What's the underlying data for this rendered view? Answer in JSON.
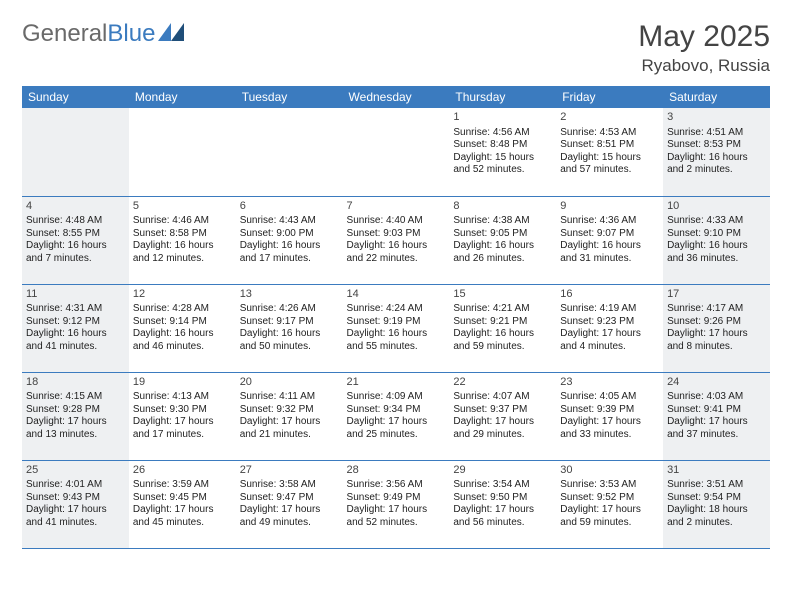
{
  "logo": {
    "text1": "General",
    "text2": "Blue"
  },
  "title": "May 2025",
  "location": "Ryabovo, Russia",
  "colors": {
    "header_bg": "#3b7bbf",
    "header_text": "#ffffff",
    "weekend_bg": "#eef0f2",
    "border": "#3b7bbf",
    "logo_gray": "#6a6a6a",
    "logo_blue": "#3b7bbf"
  },
  "weekdays": [
    "Sunday",
    "Monday",
    "Tuesday",
    "Wednesday",
    "Thursday",
    "Friday",
    "Saturday"
  ],
  "weeks": [
    [
      null,
      null,
      null,
      null,
      {
        "n": "1",
        "sr": "Sunrise: 4:56 AM",
        "ss": "Sunset: 8:48 PM",
        "d1": "Daylight: 15 hours",
        "d2": "and 52 minutes."
      },
      {
        "n": "2",
        "sr": "Sunrise: 4:53 AM",
        "ss": "Sunset: 8:51 PM",
        "d1": "Daylight: 15 hours",
        "d2": "and 57 minutes."
      },
      {
        "n": "3",
        "sr": "Sunrise: 4:51 AM",
        "ss": "Sunset: 8:53 PM",
        "d1": "Daylight: 16 hours",
        "d2": "and 2 minutes."
      }
    ],
    [
      {
        "n": "4",
        "sr": "Sunrise: 4:48 AM",
        "ss": "Sunset: 8:55 PM",
        "d1": "Daylight: 16 hours",
        "d2": "and 7 minutes."
      },
      {
        "n": "5",
        "sr": "Sunrise: 4:46 AM",
        "ss": "Sunset: 8:58 PM",
        "d1": "Daylight: 16 hours",
        "d2": "and 12 minutes."
      },
      {
        "n": "6",
        "sr": "Sunrise: 4:43 AM",
        "ss": "Sunset: 9:00 PM",
        "d1": "Daylight: 16 hours",
        "d2": "and 17 minutes."
      },
      {
        "n": "7",
        "sr": "Sunrise: 4:40 AM",
        "ss": "Sunset: 9:03 PM",
        "d1": "Daylight: 16 hours",
        "d2": "and 22 minutes."
      },
      {
        "n": "8",
        "sr": "Sunrise: 4:38 AM",
        "ss": "Sunset: 9:05 PM",
        "d1": "Daylight: 16 hours",
        "d2": "and 26 minutes."
      },
      {
        "n": "9",
        "sr": "Sunrise: 4:36 AM",
        "ss": "Sunset: 9:07 PM",
        "d1": "Daylight: 16 hours",
        "d2": "and 31 minutes."
      },
      {
        "n": "10",
        "sr": "Sunrise: 4:33 AM",
        "ss": "Sunset: 9:10 PM",
        "d1": "Daylight: 16 hours",
        "d2": "and 36 minutes."
      }
    ],
    [
      {
        "n": "11",
        "sr": "Sunrise: 4:31 AM",
        "ss": "Sunset: 9:12 PM",
        "d1": "Daylight: 16 hours",
        "d2": "and 41 minutes."
      },
      {
        "n": "12",
        "sr": "Sunrise: 4:28 AM",
        "ss": "Sunset: 9:14 PM",
        "d1": "Daylight: 16 hours",
        "d2": "and 46 minutes."
      },
      {
        "n": "13",
        "sr": "Sunrise: 4:26 AM",
        "ss": "Sunset: 9:17 PM",
        "d1": "Daylight: 16 hours",
        "d2": "and 50 minutes."
      },
      {
        "n": "14",
        "sr": "Sunrise: 4:24 AM",
        "ss": "Sunset: 9:19 PM",
        "d1": "Daylight: 16 hours",
        "d2": "and 55 minutes."
      },
      {
        "n": "15",
        "sr": "Sunrise: 4:21 AM",
        "ss": "Sunset: 9:21 PM",
        "d1": "Daylight: 16 hours",
        "d2": "and 59 minutes."
      },
      {
        "n": "16",
        "sr": "Sunrise: 4:19 AM",
        "ss": "Sunset: 9:23 PM",
        "d1": "Daylight: 17 hours",
        "d2": "and 4 minutes."
      },
      {
        "n": "17",
        "sr": "Sunrise: 4:17 AM",
        "ss": "Sunset: 9:26 PM",
        "d1": "Daylight: 17 hours",
        "d2": "and 8 minutes."
      }
    ],
    [
      {
        "n": "18",
        "sr": "Sunrise: 4:15 AM",
        "ss": "Sunset: 9:28 PM",
        "d1": "Daylight: 17 hours",
        "d2": "and 13 minutes."
      },
      {
        "n": "19",
        "sr": "Sunrise: 4:13 AM",
        "ss": "Sunset: 9:30 PM",
        "d1": "Daylight: 17 hours",
        "d2": "and 17 minutes."
      },
      {
        "n": "20",
        "sr": "Sunrise: 4:11 AM",
        "ss": "Sunset: 9:32 PM",
        "d1": "Daylight: 17 hours",
        "d2": "and 21 minutes."
      },
      {
        "n": "21",
        "sr": "Sunrise: 4:09 AM",
        "ss": "Sunset: 9:34 PM",
        "d1": "Daylight: 17 hours",
        "d2": "and 25 minutes."
      },
      {
        "n": "22",
        "sr": "Sunrise: 4:07 AM",
        "ss": "Sunset: 9:37 PM",
        "d1": "Daylight: 17 hours",
        "d2": "and 29 minutes."
      },
      {
        "n": "23",
        "sr": "Sunrise: 4:05 AM",
        "ss": "Sunset: 9:39 PM",
        "d1": "Daylight: 17 hours",
        "d2": "and 33 minutes."
      },
      {
        "n": "24",
        "sr": "Sunrise: 4:03 AM",
        "ss": "Sunset: 9:41 PM",
        "d1": "Daylight: 17 hours",
        "d2": "and 37 minutes."
      }
    ],
    [
      {
        "n": "25",
        "sr": "Sunrise: 4:01 AM",
        "ss": "Sunset: 9:43 PM",
        "d1": "Daylight: 17 hours",
        "d2": "and 41 minutes."
      },
      {
        "n": "26",
        "sr": "Sunrise: 3:59 AM",
        "ss": "Sunset: 9:45 PM",
        "d1": "Daylight: 17 hours",
        "d2": "and 45 minutes."
      },
      {
        "n": "27",
        "sr": "Sunrise: 3:58 AM",
        "ss": "Sunset: 9:47 PM",
        "d1": "Daylight: 17 hours",
        "d2": "and 49 minutes."
      },
      {
        "n": "28",
        "sr": "Sunrise: 3:56 AM",
        "ss": "Sunset: 9:49 PM",
        "d1": "Daylight: 17 hours",
        "d2": "and 52 minutes."
      },
      {
        "n": "29",
        "sr": "Sunrise: 3:54 AM",
        "ss": "Sunset: 9:50 PM",
        "d1": "Daylight: 17 hours",
        "d2": "and 56 minutes."
      },
      {
        "n": "30",
        "sr": "Sunrise: 3:53 AM",
        "ss": "Sunset: 9:52 PM",
        "d1": "Daylight: 17 hours",
        "d2": "and 59 minutes."
      },
      {
        "n": "31",
        "sr": "Sunrise: 3:51 AM",
        "ss": "Sunset: 9:54 PM",
        "d1": "Daylight: 18 hours",
        "d2": "and 2 minutes."
      }
    ]
  ]
}
